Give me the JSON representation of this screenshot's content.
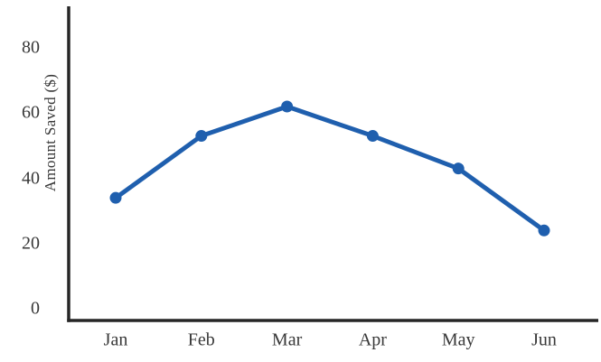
{
  "chart_data": {
    "type": "line",
    "title": "",
    "categories": [
      "Jan",
      "Feb",
      "Mar",
      "Apr",
      "May",
      "Jun"
    ],
    "series": [
      {
        "name": "Amount Saved",
        "values": [
          34,
          53,
          62,
          53,
          43,
          24
        ]
      }
    ],
    "xlabel": "",
    "ylabel": "Amount Saved ($)",
    "yticks": [
      0,
      20,
      40,
      60,
      80
    ],
    "ylim": [
      0,
      80
    ],
    "grid": false,
    "legend": false,
    "line_color": "#1F5FAE",
    "marker": "circle",
    "marker_color": "#1F5FAE",
    "axis_color": "#262626",
    "text_color": "#383838",
    "background_color": "#FFFFFF"
  }
}
